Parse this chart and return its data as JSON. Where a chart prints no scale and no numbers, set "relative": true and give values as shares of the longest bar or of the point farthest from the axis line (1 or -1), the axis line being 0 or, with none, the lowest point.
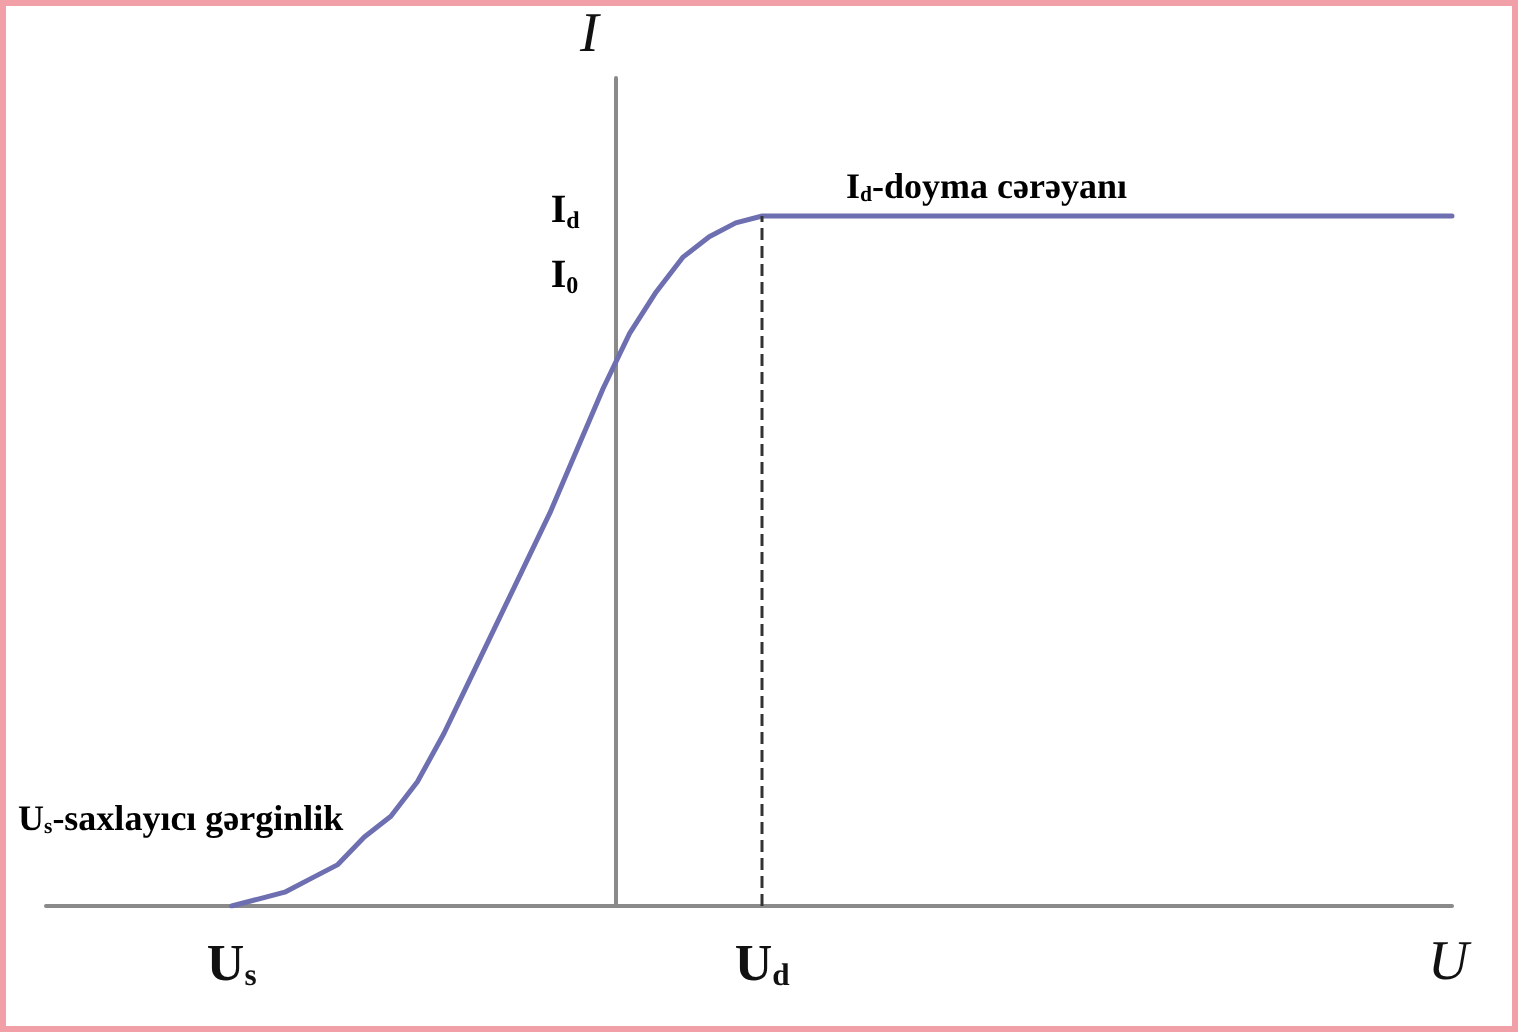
{
  "chart_data": {
    "type": "line",
    "xlabel": "U",
    "ylabel": "I",
    "categories": [
      null,
      null,
      null,
      null,
      null,
      null,
      null,
      "U$_{s}$",
      null,
      null,
      null,
      null,
      null,
      null,
      null,
      null,
      null,
      null,
      null,
      null,
      null,
      null,
      null,
      null,
      null,
      null,
      null,
      "U$_{d}$",
      null,
      null,
      null,
      null,
      null,
      null,
      null,
      null,
      null,
      null,
      null,
      null,
      null,
      null,
      null,
      null,
      null,
      null,
      null,
      null,
      null,
      null,
      null,
      null,
      null,
      null
    ],
    "series": [
      {
        "color": "#6e6fb0",
        "values": [
          null,
          null,
          null,
          null,
          null,
          null,
          null,
          0,
          0.01,
          0.02,
          0.04,
          0.06,
          0.1,
          0.13,
          0.18,
          0.25,
          0.33,
          0.41,
          0.49,
          0.57,
          0.66,
          0.75,
          0.83,
          0.89,
          0.94,
          0.97,
          0.99,
          1,
          1,
          1,
          1,
          1,
          1,
          1,
          1,
          1,
          1,
          1,
          1,
          1,
          1,
          1,
          1,
          1,
          1,
          1,
          1,
          1,
          1,
          1,
          1,
          1,
          1,
          1
        ]
      }
    ],
    "relative": true,
    "ref_lines": [
      {
        "axis": "x",
        "value": "U$_{d}$",
        "line_style": "dashed",
        "color": "#333333"
      }
    ],
    "annotations": [
      "I$_{d}$-doyma cərəyanı",
      "U$_{s}$-saxlayıcı gərginlik",
      "I$_{d}$",
      "I$_{0}$"
    ],
    "grid": false,
    "marker": "none",
    "line_style": "solid"
  }
}
